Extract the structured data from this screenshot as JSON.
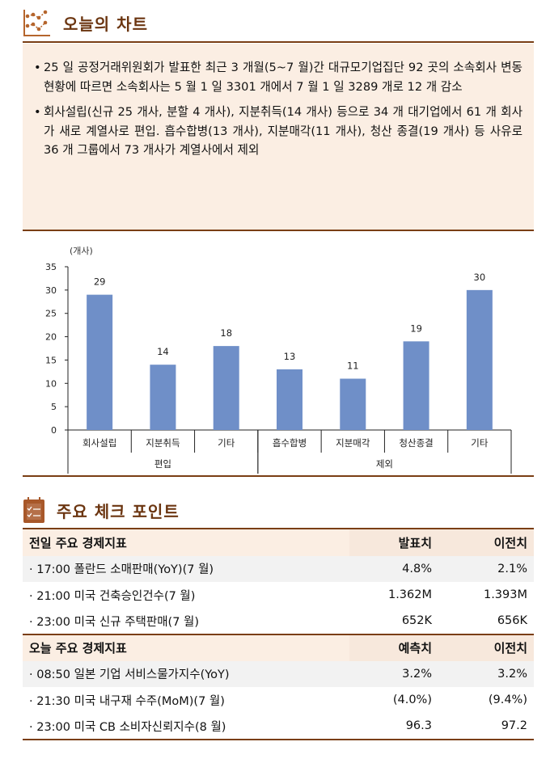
{
  "section1": {
    "icon": "line-chart-icon",
    "title": "오늘의 차트",
    "bullets": [
      "25 일 공정거래위원회가 발표한 최근 3 개월(5~7 월)간 대규모기업집단 92 곳의 소속회사 변동 현황에 따르면 소속회사는 5 월 1 일 3301 개에서 7 월 1 일 3289 개로 12 개 감소",
      "회사설립(신규 25 개사, 분할 4 개사), 지분취득(14 개사) 등으로 34 개 대기업에서 61 개 회사가 새로 계열사로 편입. 흡수합병(13 개사), 지분매각(11 개사), 청산 종결(19 개사) 등 사유로 36 개 그룹에서 73 개사가 계열사에서 제외"
    ],
    "bullet_mark": "•"
  },
  "chart_data": {
    "type": "bar",
    "unit_label": "(개사)",
    "categories": [
      "회사설립",
      "지분취득",
      "기타",
      "흡수합병",
      "지분매각",
      "청산종결",
      "기타"
    ],
    "values": [
      29,
      14,
      18,
      13,
      11,
      19,
      30
    ],
    "groups": [
      {
        "label": "편입",
        "count": 3
      },
      {
        "label": "제외",
        "count": 4
      }
    ],
    "ylim": [
      0,
      35
    ],
    "yticks": [
      0,
      5,
      10,
      15,
      20,
      25,
      30,
      35
    ],
    "bar_color": "#6f8fc8",
    "grid": false
  },
  "section2": {
    "icon": "checklist-icon",
    "title": "주요 체크 포인트",
    "tables": [
      {
        "header": [
          "전일 주요 경제지표",
          "발표치",
          "이전치"
        ],
        "rows": [
          [
            "· 17:00 폴란드 소매판매(YoY)(7 월)",
            "4.8%",
            "2.1%"
          ],
          [
            "· 21:00 미국 건축승인건수(7 월)",
            "1.362M",
            "1.393M"
          ],
          [
            "· 23:00 미국 신규 주택판매(7 월)",
            "652K",
            "656K"
          ]
        ]
      },
      {
        "header": [
          "오늘 주요 경제지표",
          "예측치",
          "이전치"
        ],
        "rows": [
          [
            "· 08:50 일본 기업 서비스물가지수(YoY)",
            "3.2%",
            "3.2%"
          ],
          [
            "· 21:30 미국 내구재 수주(MoM)(7 월)",
            "(4.0%)",
            "(9.4%)"
          ],
          [
            "· 23:00 미국 CB 소비자신뢰지수(8 월)",
            "96.3",
            "97.2"
          ]
        ]
      }
    ]
  }
}
